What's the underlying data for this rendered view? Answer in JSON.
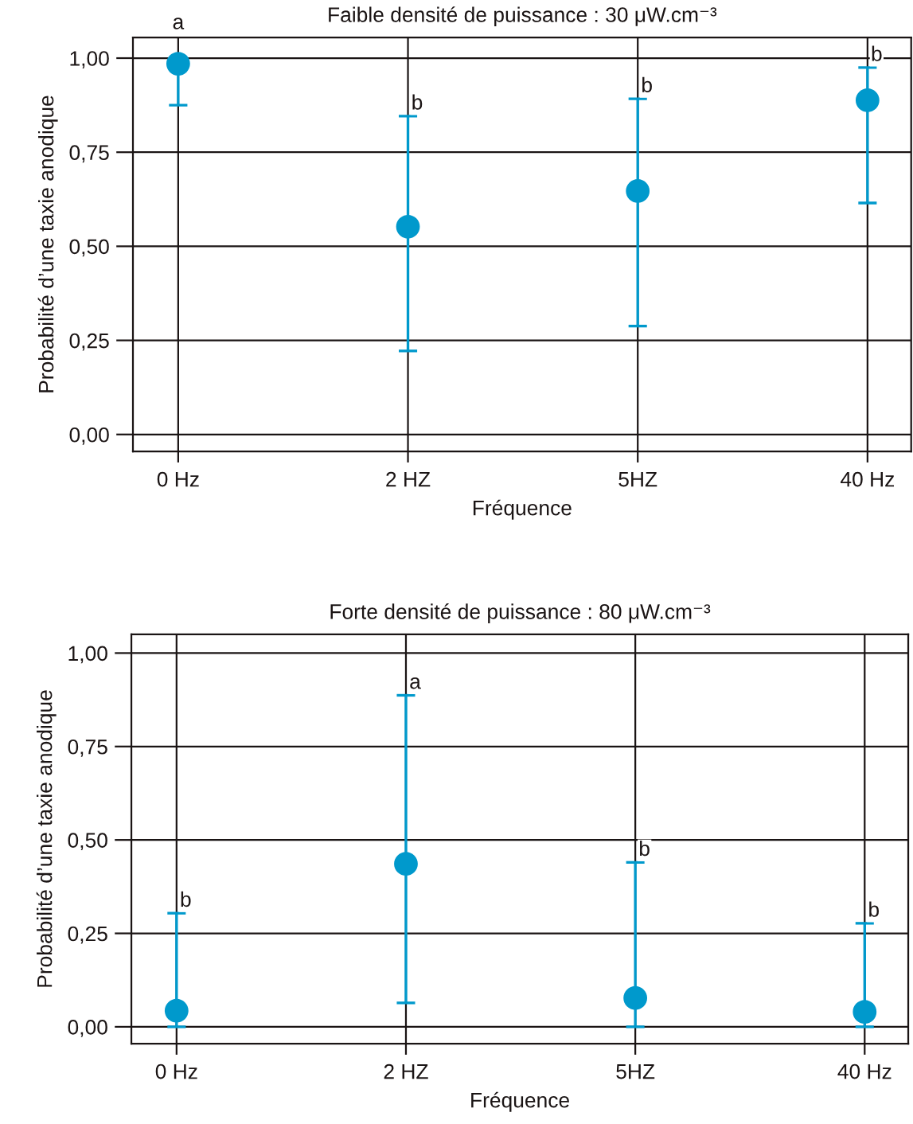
{
  "chart_data": [
    {
      "type": "scatter",
      "title": "Faible densité de puissance : 30 μW.cm⁻³",
      "xlabel": "Fréquence",
      "ylabel": "Probabilité d’une taxie anodique",
      "categories": [
        "0 Hz",
        "2 HZ",
        "5HZ",
        "40 Hz"
      ],
      "series": [
        {
          "color": "#0099cc",
          "values": [
            0.985,
            0.552,
            0.647,
            0.888
          ],
          "errors": [
            [
              0.875,
              0.985
            ],
            [
              0.222,
              0.846
            ],
            [
              0.288,
              0.892
            ],
            [
              0.615,
              0.975
            ]
          ]
        }
      ],
      "marker": "circle",
      "grid": true,
      "ylim": [
        -0.045,
        1.055
      ],
      "yticks": [
        {
          "value": 0,
          "label": "0,00"
        },
        {
          "value": 0.25,
          "label": "0,25"
        },
        {
          "value": 0.5,
          "label": "0,50"
        },
        {
          "value": 0.75,
          "label": "0,75"
        },
        {
          "value": 1,
          "label": "1,00"
        }
      ],
      "annotations": [
        {
          "text": "a",
          "x": "0 Hz",
          "y": 0.985
        },
        {
          "text": "b",
          "x": "2 HZ",
          "y": 0.846
        },
        {
          "text": "b",
          "x": "5HZ",
          "y": 0.892
        },
        {
          "text": "b",
          "x": "40 Hz",
          "y": 0.975
        }
      ]
    },
    {
      "type": "scatter",
      "title": "Forte densité de puissance : 80 μW.cm⁻³",
      "xlabel": "Fréquence",
      "ylabel": "Probabilité d’une taxie anodique",
      "categories": [
        "0 Hz",
        "2 HZ",
        "5HZ",
        "40 Hz"
      ],
      "series": [
        {
          "color": "#0099cc",
          "values": [
            0.043,
            0.436,
            0.077,
            0.04
          ],
          "errors": [
            [
              0,
              0.304
            ],
            [
              0.064,
              0.887
            ],
            [
              0,
              0.44
            ],
            [
              0,
              0.277
            ]
          ]
        }
      ],
      "marker": "circle",
      "grid": true,
      "ylim": [
        -0.045,
        1.05
      ],
      "yticks": [
        {
          "value": 0,
          "label": "0,00"
        },
        {
          "value": 0.25,
          "label": "0,25"
        },
        {
          "value": 0.5,
          "label": "0,50"
        },
        {
          "value": 0.75,
          "label": "0,75"
        },
        {
          "value": 1,
          "label": "1,00"
        }
      ],
      "annotations": [
        {
          "text": "b",
          "x": "0 Hz",
          "y": 0.304
        },
        {
          "text": "a",
          "x": "2 HZ",
          "y": 0.887
        },
        {
          "text": "b",
          "x": "5HZ",
          "y": 0.44
        },
        {
          "text": "b",
          "x": "40 Hz",
          "y": 0.277
        }
      ]
    }
  ]
}
